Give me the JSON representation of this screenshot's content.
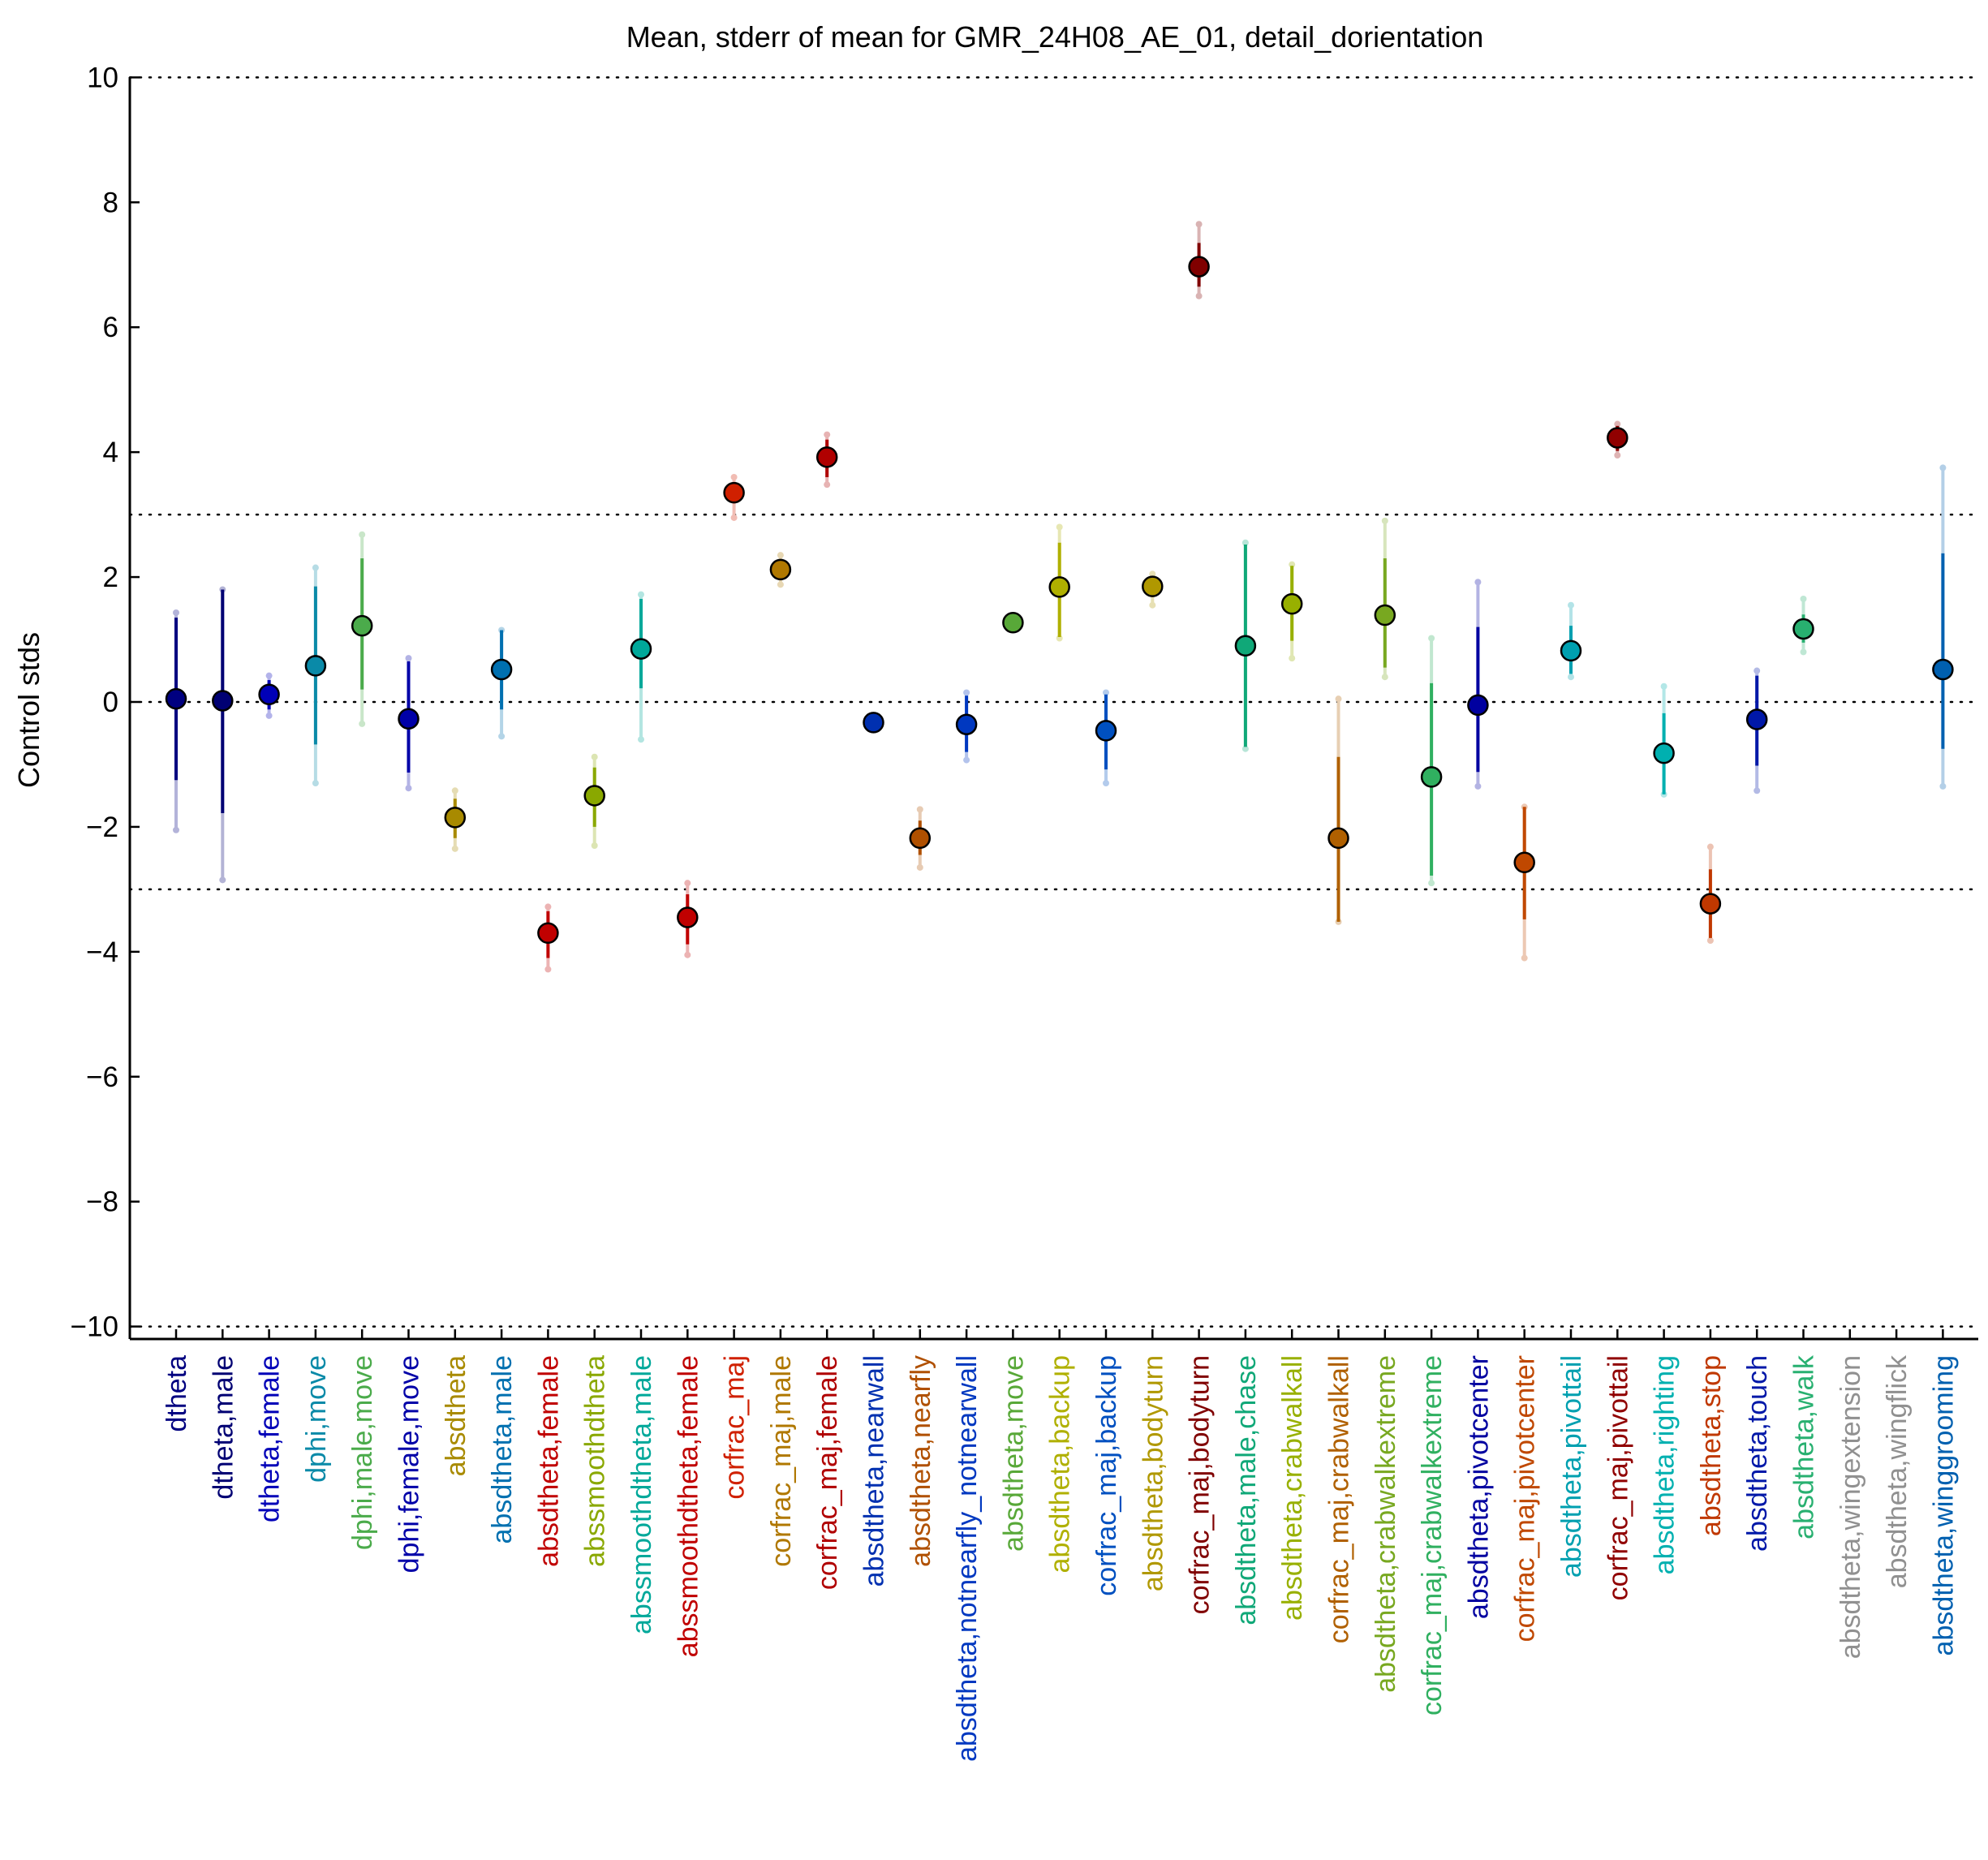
{
  "chart_data": {
    "type": "scatter",
    "title": "Mean, stderr of mean for GMR_24H08_AE_01, detail_dorientation",
    "xlabel": "",
    "ylabel": "Control stds",
    "ylim": [
      -10.2,
      10.2
    ],
    "yticks": [
      10,
      8,
      6,
      4,
      2,
      0,
      -2,
      -4,
      -6,
      -8,
      -10
    ],
    "ytick_labels": [
      "10",
      "8",
      "6",
      "4",
      "2",
      "0",
      "−2",
      "−4",
      "−6",
      "−8",
      "−10"
    ],
    "reference_lines": [
      10,
      3,
      0,
      -3,
      -10
    ],
    "grid": false,
    "categories": [
      "dtheta",
      "dtheta,male",
      "dtheta,female",
      "dphi,move",
      "dphi,male,move",
      "dphi,female,move",
      "absdtheta",
      "absdtheta,male",
      "absdtheta,female",
      "abssmoothdtheta",
      "abssmoothdtheta,male",
      "abssmoothdtheta,female",
      "corfrac_maj",
      "corfrac_maj,male",
      "corfrac_maj,female",
      "absdtheta,nearwall",
      "absdtheta,nearfly",
      "absdtheta,notnearfly_notnearwall",
      "absdtheta,move",
      "absdtheta,backup",
      "corfrac_maj,backup",
      "absdtheta,bodyturn",
      "corfrac_maj,bodyturn",
      "absdtheta,male,chase",
      "absdtheta,crabwalkall",
      "corfrac_maj,crabwalkall",
      "absdtheta,crabwalkextreme",
      "corfrac_maj,crabwalkextreme",
      "absdtheta,pivotcenter",
      "corfrac_maj,pivotcenter",
      "absdtheta,pivottail",
      "corfrac_maj,pivottail",
      "absdtheta,righting",
      "absdtheta,stop",
      "absdtheta,touch",
      "absdtheta,walk",
      "absdtheta,wingextension",
      "absdtheta,wingflick",
      "absdtheta,winggrooming"
    ],
    "colors": [
      "#000080",
      "#000073",
      "#0000b8",
      "#0a8aa8",
      "#4bab4b",
      "#0000a8",
      "#a88a00",
      "#0070b0",
      "#c00000",
      "#8aa800",
      "#00a89a",
      "#c00000",
      "#d02000",
      "#b07800",
      "#b00000",
      "#0030b0",
      "#b05000",
      "#0038c0",
      "#58a838",
      "#b0b000",
      "#0050c0",
      "#b09800",
      "#800000",
      "#10a878",
      "#98b000",
      "#b06000",
      "#78a820",
      "#30b060",
      "#0000a0",
      "#c04800",
      "#00a0b0",
      "#900000",
      "#00b0b0",
      "#c03800",
      "#0018a8",
      "#28b070",
      "#909090",
      "#909090",
      "#0060b0"
    ],
    "mean": [
      0.05,
      0.02,
      0.12,
      0.58,
      1.22,
      -0.27,
      -1.85,
      0.52,
      -3.7,
      -1.5,
      0.85,
      -3.45,
      3.35,
      2.12,
      3.92,
      -0.33,
      -2.18,
      -0.36,
      1.27,
      1.84,
      -0.46,
      1.85,
      6.97,
      0.9,
      1.57,
      -2.18,
      1.39,
      -1.2,
      -0.05,
      -2.57,
      0.82,
      4.23,
      -0.82,
      -3.23,
      -0.28,
      1.17,
      null,
      null,
      0.52
    ],
    "stderr_lower": [
      -1.25,
      -1.78,
      -0.12,
      -0.68,
      0.2,
      -1.13,
      -2.18,
      -0.12,
      -4.1,
      -2.0,
      0.22,
      -3.88,
      3.18,
      1.98,
      3.6,
      -0.36,
      -2.45,
      -0.8,
      1.24,
      1.04,
      -1.08,
      1.68,
      6.65,
      -0.72,
      0.98,
      -3.52,
      0.55,
      -2.78,
      -1.12,
      -3.48,
      0.45,
      4.02,
      -1.48,
      -3.78,
      -1.02,
      0.95,
      null,
      null,
      -0.75
    ],
    "stderr_upper": [
      1.35,
      1.8,
      0.35,
      1.85,
      2.3,
      0.65,
      -1.55,
      1.15,
      -3.35,
      -1.05,
      1.65,
      -3.08,
      3.5,
      2.28,
      4.2,
      -0.3,
      -1.9,
      0.1,
      1.3,
      2.55,
      0.12,
      2.02,
      7.35,
      2.52,
      2.18,
      -0.88,
      2.3,
      0.3,
      1.2,
      -1.68,
      1.22,
      4.42,
      -0.18,
      -2.68,
      0.42,
      1.4,
      null,
      null,
      2.38
    ],
    "range_lower": [
      -2.05,
      -2.85,
      -0.22,
      -1.3,
      -0.35,
      -1.38,
      -2.35,
      -0.55,
      -4.28,
      -2.3,
      -0.6,
      -4.05,
      2.95,
      1.88,
      3.48,
      -0.38,
      -2.65,
      -0.93,
      1.22,
      1.02,
      -1.3,
      1.55,
      6.5,
      -0.75,
      0.7,
      -3.52,
      0.4,
      -2.9,
      -1.35,
      -4.1,
      0.4,
      3.95,
      -1.48,
      -3.82,
      -1.42,
      0.8,
      null,
      null,
      -1.35
    ],
    "range_upper": [
      1.43,
      1.8,
      0.42,
      2.15,
      2.68,
      0.7,
      -1.42,
      1.15,
      -3.28,
      -0.88,
      1.72,
      -2.9,
      3.6,
      2.35,
      4.28,
      -0.3,
      -1.72,
      0.15,
      1.32,
      2.8,
      0.15,
      2.05,
      7.65,
      2.55,
      2.2,
      0.05,
      2.9,
      1.02,
      1.92,
      -1.68,
      1.55,
      4.45,
      0.25,
      -2.32,
      0.5,
      1.65,
      null,
      null,
      3.75
    ]
  }
}
